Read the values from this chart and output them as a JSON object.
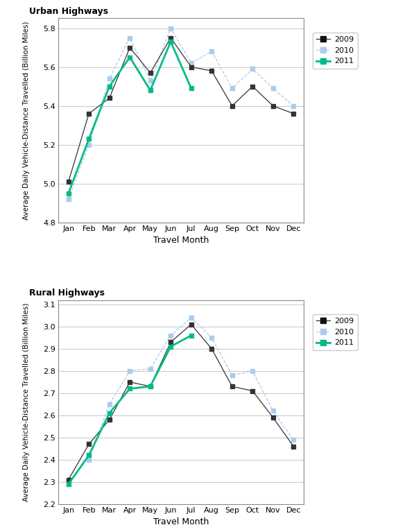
{
  "months": [
    "Jan",
    "Feb",
    "Mar",
    "Apr",
    "May",
    "Jun",
    "Jul",
    "Aug",
    "Sep",
    "Oct",
    "Nov",
    "Dec"
  ],
  "urban_2009": [
    5.01,
    5.36,
    5.44,
    5.7,
    5.57,
    5.75,
    5.6,
    5.58,
    5.4,
    5.5,
    5.4,
    5.36
  ],
  "urban_2010": [
    4.92,
    5.2,
    5.54,
    5.75,
    5.53,
    5.8,
    5.62,
    5.68,
    5.49,
    5.59,
    5.49,
    5.4
  ],
  "urban_2011": [
    4.95,
    5.23,
    5.5,
    5.65,
    5.48,
    5.73,
    5.49,
    null,
    null,
    null,
    null,
    null
  ],
  "rural_2009": [
    2.31,
    2.47,
    2.58,
    2.75,
    2.73,
    2.93,
    3.01,
    2.9,
    2.73,
    2.71,
    2.59,
    2.46
  ],
  "rural_2010": [
    null,
    2.4,
    2.65,
    2.8,
    2.81,
    2.96,
    3.04,
    2.95,
    2.78,
    2.8,
    2.62,
    2.49
  ],
  "rural_2011": [
    2.29,
    2.42,
    2.61,
    2.72,
    2.73,
    2.91,
    2.96,
    null,
    null,
    null,
    null,
    null
  ],
  "color_2009": "#555555",
  "color_2010": "#aaccee",
  "color_2011": "#00bb88",
  "urban_ylim": [
    4.8,
    5.85
  ],
  "urban_yticks": [
    4.8,
    5.0,
    5.2,
    5.4,
    5.6,
    5.8
  ],
  "rural_ylim": [
    2.2,
    3.12
  ],
  "rural_yticks": [
    2.2,
    2.3,
    2.4,
    2.5,
    2.6,
    2.7,
    2.8,
    2.9,
    3.0,
    3.1
  ],
  "xlabel": "Travel Month",
  "ylabel": "Average Daily Vehicle-Distance Travelled (Billion Miles)",
  "urban_title": "Urban Highways",
  "rural_title": "Rural Highways",
  "legend_labels": [
    "2009",
    "2010",
    "2011"
  ]
}
